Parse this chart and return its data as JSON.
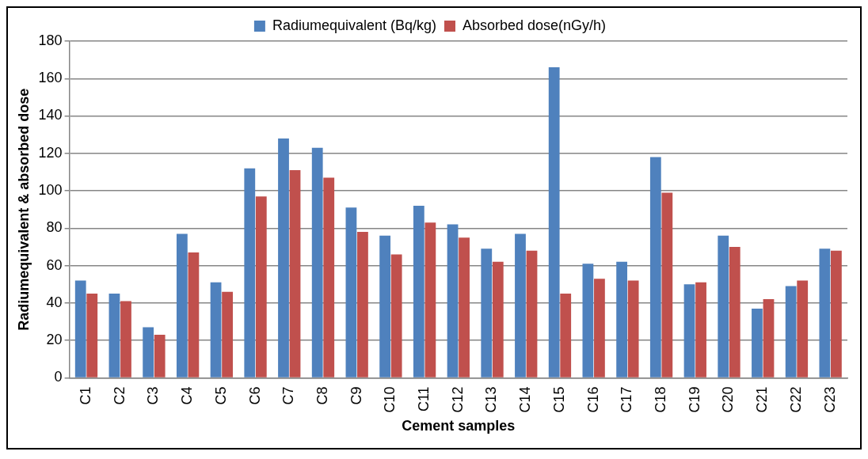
{
  "chart_data": {
    "type": "bar",
    "xlabel": "Cement samples",
    "ylabel": "Radiumequivalent & absorbed dose",
    "categories": [
      "C1",
      "C2",
      "C3",
      "C4",
      "C5",
      "C6",
      "C7",
      "C8",
      "C9",
      "C10",
      "C11",
      "C12",
      "C13",
      "C14",
      "C15",
      "C16",
      "C17",
      "C18",
      "C19",
      "C20",
      "C21",
      "C22",
      "C23"
    ],
    "series": [
      {
        "name": "Radiumequivalent (Bq/kg)",
        "color": "#4f81bd",
        "values": [
          52,
          45,
          27,
          77,
          51,
          112,
          128,
          123,
          91,
          76,
          92,
          82,
          69,
          77,
          166,
          61,
          62,
          118,
          50,
          76,
          37,
          49,
          69
        ]
      },
      {
        "name": "Absorbed dose(nGy/h)",
        "color": "#c0504d",
        "values": [
          45,
          41,
          23,
          67,
          46,
          97,
          111,
          107,
          78,
          66,
          83,
          75,
          62,
          68,
          45,
          53,
          52,
          99,
          51,
          70,
          42,
          52,
          68
        ]
      }
    ],
    "ylim": [
      0,
      180
    ],
    "yticks": [
      0,
      20,
      40,
      60,
      80,
      100,
      120,
      140,
      160,
      180
    ],
    "grid": "y",
    "legend": "top"
  }
}
